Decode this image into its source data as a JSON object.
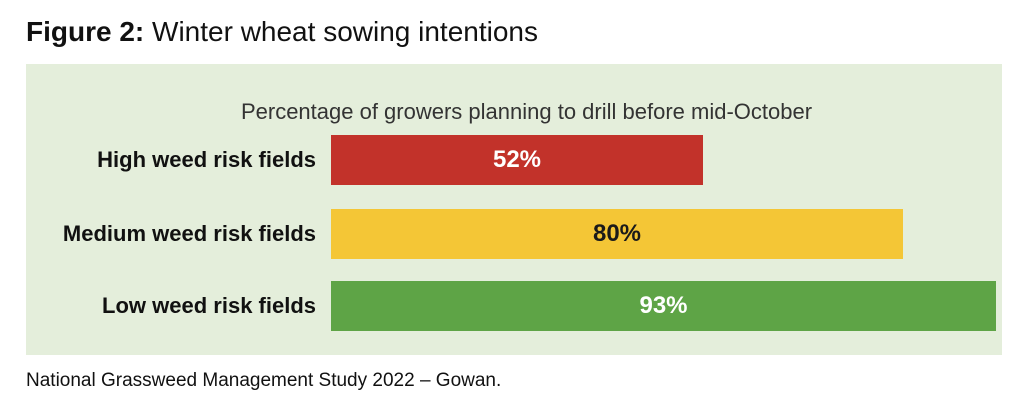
{
  "figure": {
    "number": "Figure 2:",
    "title": "Winter wheat sowing intentions",
    "source": "National Grassweed Management Study 2022 – Gowan."
  },
  "chart_data": {
    "type": "bar",
    "orientation": "horizontal",
    "subtitle": "Percentage of growers planning to drill before mid-October",
    "categories": [
      "High weed risk fields",
      "Medium weed risk fields",
      "Low weed risk fields"
    ],
    "values": [
      52,
      80,
      93
    ],
    "value_labels": [
      "52%",
      "80%",
      "93%"
    ],
    "colors": [
      "#c2322a",
      "#f4c636",
      "#5ea446"
    ],
    "label_colors": [
      "#ffffff",
      "#1a1a1a",
      "#ffffff"
    ],
    "xlim": [
      0,
      100
    ],
    "grid": false,
    "legend": "none"
  }
}
